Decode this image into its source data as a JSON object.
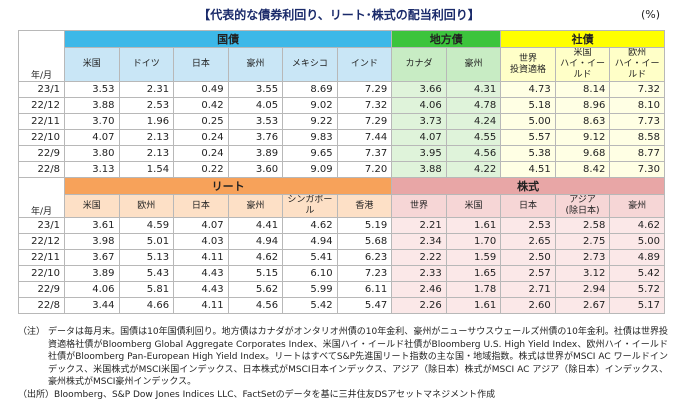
{
  "title": "【代表的な債券利回り、リート･株式の配当利回り】",
  "unit": "(%)",
  "tables": [
    {
      "corner": "年/月",
      "groups": [
        {
          "label": "国債",
          "color": "#3db8e8",
          "sub": "#c9e6f6",
          "cell": "#ffffff",
          "columns": [
            "米国",
            "ドイツ",
            "日本",
            "豪州",
            "メキシコ",
            "インド"
          ]
        },
        {
          "label": "地方債",
          "color": "#3cc43c",
          "sub": "#c8ecc4",
          "cell": "#dff3da",
          "columns": [
            "カナダ",
            "豪州"
          ]
        },
        {
          "label": "社債",
          "color": "#ffff00",
          "sub": "#ffffc8",
          "cell": "#ffffe4",
          "columns": [
            "世界\n投資適格",
            "米国\nハイ・イールド",
            "欧州\nハイ・イールド"
          ]
        }
      ],
      "rows": [
        {
          "label": "23/1",
          "values": [
            "3.53",
            "2.31",
            "0.49",
            "3.55",
            "8.69",
            "7.29",
            "3.66",
            "4.31",
            "4.73",
            "8.14",
            "7.32"
          ]
        },
        {
          "label": "22/12",
          "values": [
            "3.88",
            "2.53",
            "0.42",
            "4.05",
            "9.02",
            "7.32",
            "4.06",
            "4.78",
            "5.18",
            "8.96",
            "8.10"
          ]
        },
        {
          "label": "22/11",
          "values": [
            "3.70",
            "1.96",
            "0.25",
            "3.53",
            "9.22",
            "7.29",
            "3.73",
            "4.24",
            "5.00",
            "8.63",
            "7.73"
          ]
        },
        {
          "label": "22/10",
          "values": [
            "4.07",
            "2.13",
            "0.24",
            "3.76",
            "9.83",
            "7.44",
            "4.07",
            "4.55",
            "5.57",
            "9.12",
            "8.58"
          ]
        },
        {
          "label": "22/9",
          "values": [
            "3.80",
            "2.13",
            "0.24",
            "3.89",
            "9.65",
            "7.37",
            "3.95",
            "4.56",
            "5.38",
            "9.68",
            "8.77"
          ]
        },
        {
          "label": "22/8",
          "values": [
            "3.13",
            "1.54",
            "0.22",
            "3.60",
            "9.09",
            "7.20",
            "3.88",
            "4.22",
            "4.51",
            "8.42",
            "7.30"
          ]
        }
      ]
    },
    {
      "corner": "年/月",
      "groups": [
        {
          "label": "リート",
          "color": "#f7a25a",
          "sub": "#fde0c6",
          "cell": "#ffffff",
          "columns": [
            "米国",
            "欧州",
            "日本",
            "豪州",
            "シンガポール",
            "香港"
          ]
        },
        {
          "label": "株式",
          "color": "#e8a6a6",
          "sub": "#f6d6d6",
          "cell": "#fbe8e8",
          "columns": [
            "世界",
            "米国",
            "日本",
            "アジア\n(除日本)",
            "豪州"
          ]
        }
      ],
      "rows": [
        {
          "label": "23/1",
          "values": [
            "3.61",
            "4.59",
            "4.07",
            "4.41",
            "4.62",
            "5.19",
            "2.21",
            "1.61",
            "2.53",
            "2.58",
            "4.62"
          ]
        },
        {
          "label": "22/12",
          "values": [
            "3.98",
            "5.01",
            "4.03",
            "4.94",
            "4.94",
            "5.68",
            "2.34",
            "1.70",
            "2.65",
            "2.75",
            "5.00"
          ]
        },
        {
          "label": "22/11",
          "values": [
            "3.67",
            "5.13",
            "4.11",
            "4.62",
            "5.41",
            "6.23",
            "2.22",
            "1.59",
            "2.50",
            "2.73",
            "4.89"
          ]
        },
        {
          "label": "22/10",
          "values": [
            "3.89",
            "5.43",
            "4.43",
            "5.15",
            "6.10",
            "7.23",
            "2.33",
            "1.65",
            "2.57",
            "3.12",
            "5.42"
          ]
        },
        {
          "label": "22/9",
          "values": [
            "4.06",
            "5.81",
            "4.43",
            "5.62",
            "5.99",
            "6.11",
            "2.46",
            "1.78",
            "2.71",
            "2.94",
            "5.72"
          ]
        },
        {
          "label": "22/8",
          "values": [
            "3.44",
            "4.66",
            "4.11",
            "4.56",
            "5.42",
            "5.47",
            "2.26",
            "1.61",
            "2.60",
            "2.67",
            "5.17"
          ]
        }
      ]
    }
  ],
  "note_label": "（注）",
  "note": "データは毎月末。国債は10年国債利回り。地方債はカナダがオンタリオ州債の10年金利、豪州がニューサウスウェールズ州債の10年金利。社債は世界投資適格社債がBloomberg Global Aggregate Corporates Index、米国ハイ・イールド社債がBloomberg U.S. High Yield Index、欧州ハイ・イールド社債がBloomberg Pan-European High Yield Index。リートはすべてS&P先進国リート指数の主な国・地域指数。株式は世界がMSCI AC ワールドインデックス、米国株式がMSCI米国インデックス、日本株式がMSCI日本インデックス、アジア（除日本）株式がMSCI AC アジア（除日本）インデックス、豪州株式がMSCI豪州インデックス。",
  "source": "（出所）Bloomberg、S&P Dow Jones Indices LLC、FactSetのデータを基に三井住友DSアセットマネジメント作成"
}
